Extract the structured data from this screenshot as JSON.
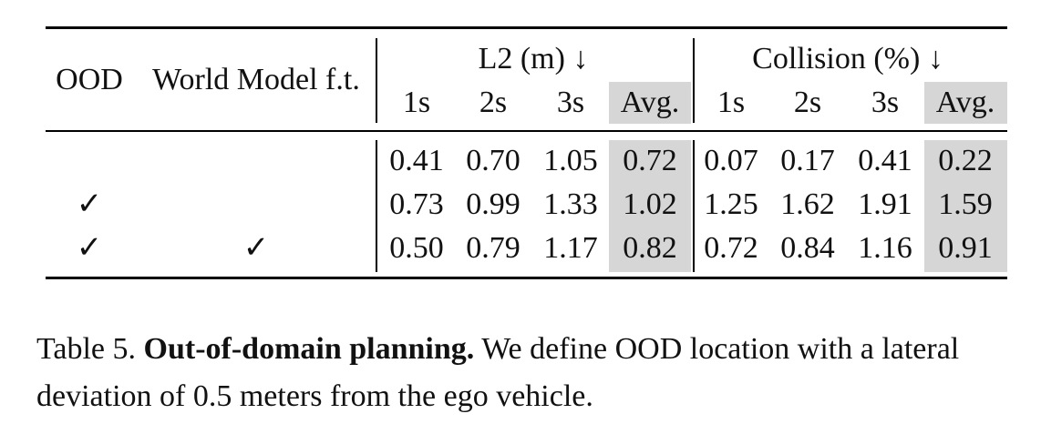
{
  "table": {
    "headers": {
      "ood": "OOD",
      "world_model": "World Model f.t.",
      "l2_group": "L2 (m) ↓",
      "collision_group": "Collision (%) ↓",
      "l2_cols": [
        "1s",
        "2s",
        "3s",
        "Avg."
      ],
      "collision_cols": [
        "1s",
        "2s",
        "3s",
        "Avg."
      ]
    },
    "rows": [
      {
        "ood": "",
        "wm": "",
        "l2": [
          "0.41",
          "0.70",
          "1.05",
          "0.72"
        ],
        "col": [
          "0.07",
          "0.17",
          "0.41",
          "0.22"
        ]
      },
      {
        "ood": "✓",
        "wm": "",
        "l2": [
          "0.73",
          "0.99",
          "1.33",
          "1.02"
        ],
        "col": [
          "1.25",
          "1.62",
          "1.91",
          "1.59"
        ]
      },
      {
        "ood": "✓",
        "wm": "✓",
        "l2": [
          "0.50",
          "0.79",
          "1.17",
          "0.82"
        ],
        "col": [
          "0.72",
          "0.84",
          "1.16",
          "0.91"
        ]
      }
    ]
  },
  "caption": {
    "label": "Table 5.",
    "title": "Out-of-domain planning.",
    "text": "We define OOD location with a lateral deviation of 0.5 meters from the ego vehicle."
  }
}
